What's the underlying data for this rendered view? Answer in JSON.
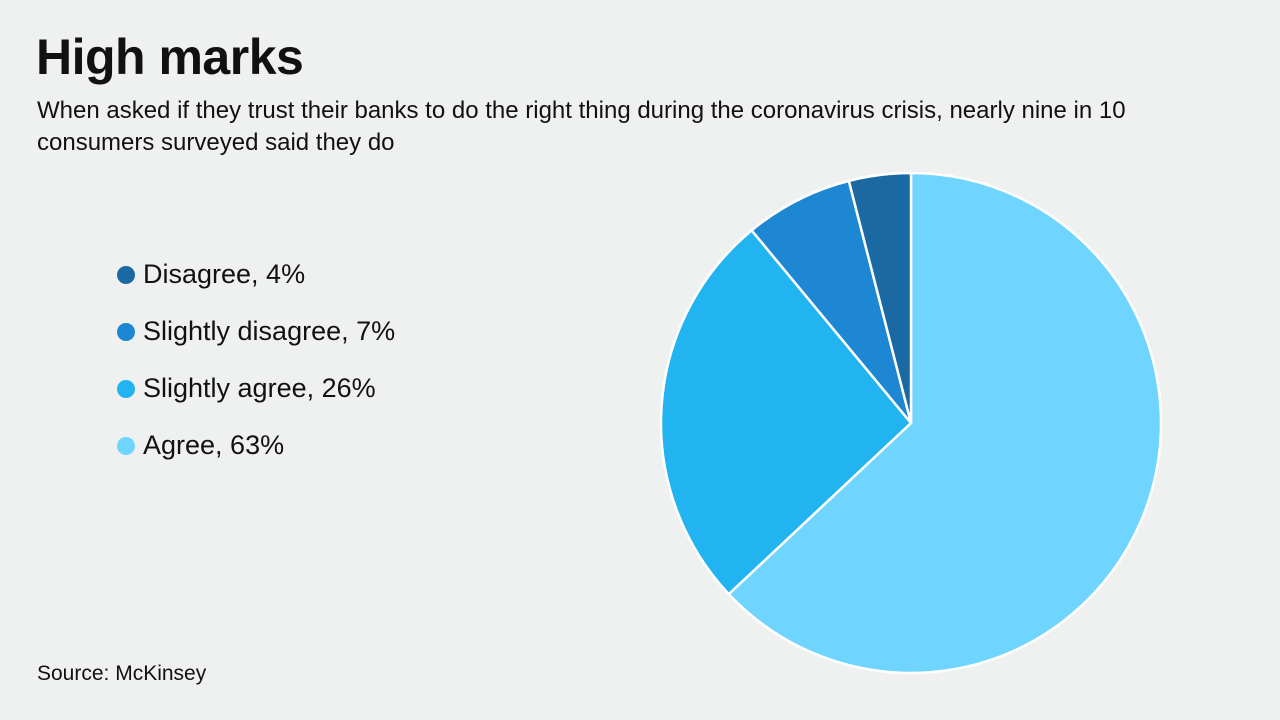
{
  "chart_data": {
    "type": "pie",
    "title": "High marks",
    "subtitle": "When asked if they trust their banks to do the right thing during the coronavirus crisis, nearly nine in 10 consumers surveyed said they do",
    "slices": [
      {
        "label": "Disagree",
        "value": 4,
        "legend": "Disagree, 4%",
        "color": "#1b69a3"
      },
      {
        "label": "Slightly disagree",
        "value": 7,
        "legend": "Slightly disagree, 7%",
        "color": "#1d87d3"
      },
      {
        "label": "Slightly agree",
        "value": 26,
        "legend": "Slightly agree, 26%",
        "color": "#22b4f1"
      },
      {
        "label": "Agree",
        "value": 63,
        "legend": "Agree, 63%",
        "color": "#6fd4fe"
      }
    ],
    "legend_position": "left",
    "source": "Source: McKinsey"
  }
}
